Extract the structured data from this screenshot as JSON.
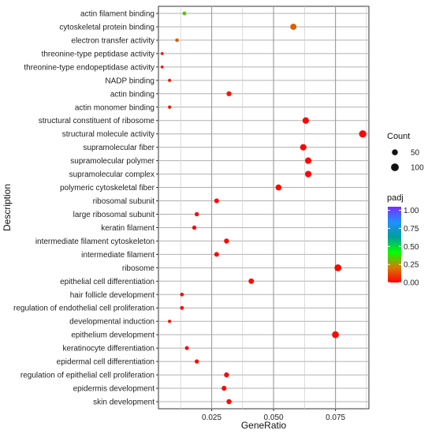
{
  "chart_data": {
    "type": "scatter",
    "xlabel": "GeneRatio",
    "ylabel": "Description",
    "xlim": [
      0.0035,
      0.0885
    ],
    "x_ticks": [
      {
        "value": 0.025,
        "label": "0.025"
      },
      {
        "value": 0.05,
        "label": "0.050"
      },
      {
        "value": 0.075,
        "label": "0.075"
      }
    ],
    "grid": true,
    "legend_placement": "right",
    "count_legend": {
      "title": "Count",
      "entries": [
        {
          "value": 50,
          "label": "50"
        },
        {
          "value": 100,
          "label": "100"
        }
      ]
    },
    "color_legend": {
      "title": "padj",
      "scale_min": 0.0,
      "scale_max": 1.05,
      "ticks": [
        {
          "value": 1.0,
          "label": "1.00"
        },
        {
          "value": 0.75,
          "label": "0.75"
        },
        {
          "value": 0.5,
          "label": "0.50"
        },
        {
          "value": 0.25,
          "label": "0.25"
        },
        {
          "value": 0.0,
          "label": "0.00"
        }
      ],
      "gradient": [
        "#FF0000",
        "#D67C00",
        "#00FF00",
        "#009E9E",
        "#1E90FF",
        "#7B2BFF"
      ]
    },
    "points": [
      {
        "label": "actin filament binding",
        "x": 0.014,
        "count": 14,
        "padj": 0.33
      },
      {
        "label": "cytoskeletal protein binding",
        "x": 0.058,
        "count": 58,
        "padj": 0.16
      },
      {
        "label": "electron transfer activity",
        "x": 0.011,
        "count": 11,
        "padj": 0.15
      },
      {
        "label": "threonine-type peptidase activity",
        "x": 0.005,
        "count": 5,
        "padj": 0.04
      },
      {
        "label": "threonine-type endopeptidase activity",
        "x": 0.005,
        "count": 5,
        "padj": 0.04
      },
      {
        "label": "NADP binding",
        "x": 0.008,
        "count": 8,
        "padj": 0.05
      },
      {
        "label": "actin binding",
        "x": 0.032,
        "count": 32,
        "padj": 0.04
      },
      {
        "label": "actin monomer binding",
        "x": 0.008,
        "count": 8,
        "padj": 0.03
      },
      {
        "label": "structural constituent of ribosome",
        "x": 0.063,
        "count": 63,
        "padj": 0.01
      },
      {
        "label": "structural molecule activity",
        "x": 0.086,
        "count": 86,
        "padj": 0.01
      },
      {
        "label": "supramolecular fiber",
        "x": 0.062,
        "count": 62,
        "padj": 0.01
      },
      {
        "label": "supramolecular polymer",
        "x": 0.064,
        "count": 64,
        "padj": 0.01
      },
      {
        "label": "supramolecular complex",
        "x": 0.064,
        "count": 64,
        "padj": 0.01
      },
      {
        "label": "polymeric cytoskeletal fiber",
        "x": 0.052,
        "count": 52,
        "padj": 0.01
      },
      {
        "label": "ribosomal subunit",
        "x": 0.027,
        "count": 27,
        "padj": 0.01
      },
      {
        "label": "large ribosomal subunit",
        "x": 0.019,
        "count": 19,
        "padj": 0.01
      },
      {
        "label": "keratin filament",
        "x": 0.018,
        "count": 18,
        "padj": 0.01
      },
      {
        "label": "intermediate filament cytoskeleton",
        "x": 0.031,
        "count": 31,
        "padj": 0.01
      },
      {
        "label": "intermediate filament",
        "x": 0.027,
        "count": 27,
        "padj": 0.01
      },
      {
        "label": "ribosome",
        "x": 0.076,
        "count": 76,
        "padj": 0.01
      },
      {
        "label": "epithelial cell differentiation",
        "x": 0.041,
        "count": 41,
        "padj": 0.02
      },
      {
        "label": "hair follicle development",
        "x": 0.013,
        "count": 13,
        "padj": 0.02
      },
      {
        "label": "regulation of endothelial cell proliferation",
        "x": 0.013,
        "count": 13,
        "padj": 0.02
      },
      {
        "label": "developmental induction",
        "x": 0.008,
        "count": 8,
        "padj": 0.02
      },
      {
        "label": "epithelium development",
        "x": 0.075,
        "count": 75,
        "padj": 0.02
      },
      {
        "label": "keratinocyte differentiation",
        "x": 0.015,
        "count": 15,
        "padj": 0.02
      },
      {
        "label": "epidermal cell differentiation",
        "x": 0.019,
        "count": 19,
        "padj": 0.02
      },
      {
        "label": "regulation of epithelial cell proliferation",
        "x": 0.031,
        "count": 31,
        "padj": 0.02
      },
      {
        "label": "epidermis development",
        "x": 0.03,
        "count": 30,
        "padj": 0.02
      },
      {
        "label": "skin development",
        "x": 0.032,
        "count": 32,
        "padj": 0.02
      }
    ]
  }
}
